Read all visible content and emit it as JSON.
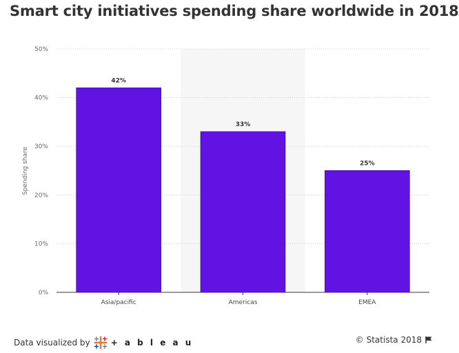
{
  "title": "Smart city initiatives spending share worldwide in 2018",
  "footer": {
    "visualized_by": "Data visualized by",
    "tableau_logo_text": "+ a b l e a u",
    "copyright": "© Statista 2018",
    "flag_icon": "flag-icon"
  },
  "colors": {
    "bar": "#6113e3",
    "bar_border": "#4a0fb0",
    "highlight_band": "#f6f6f6",
    "grid": "#cccccc"
  },
  "chart_data": {
    "type": "bar",
    "title": "Smart city initiatives spending share worldwide in 2018",
    "xlabel": "",
    "ylabel": "Spending share",
    "categories": [
      "Asia/pacific",
      "Americas",
      "EMEA"
    ],
    "values": [
      42,
      33,
      25
    ],
    "data_labels": [
      "42%",
      "33%",
      "25%"
    ],
    "ylim": [
      0,
      50
    ],
    "yticks": [
      0,
      10,
      20,
      30,
      40,
      50
    ],
    "ytick_labels": [
      "0%",
      "10%",
      "20%",
      "30%",
      "40%",
      "50%"
    ],
    "grid": true,
    "highlighted_category": "Americas"
  }
}
